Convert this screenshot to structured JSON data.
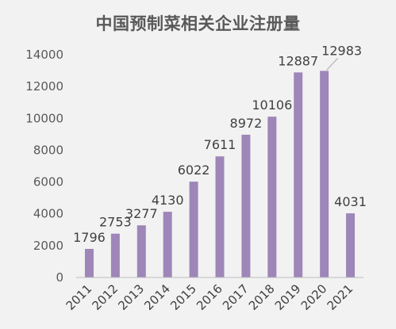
{
  "chart_data": {
    "type": "bar",
    "title": "中国预制菜相关企业注册量",
    "categories": [
      "2011",
      "2012",
      "2013",
      "2014",
      "2015",
      "2016",
      "2017",
      "2018",
      "2019",
      "2020",
      "2021"
    ],
    "values": [
      1796,
      2753,
      3277,
      4130,
      6022,
      7611,
      8972,
      10106,
      12887,
      12983,
      4031
    ],
    "ylim": [
      0,
      14000
    ],
    "yticks": [
      0,
      2000,
      4000,
      6000,
      8000,
      10000,
      12000,
      14000
    ],
    "grid": false,
    "legend": "none",
    "colors": {
      "bar": "#9e86b8",
      "leader_line": "#a6a6a6",
      "axis": "#bfbfbf"
    }
  }
}
